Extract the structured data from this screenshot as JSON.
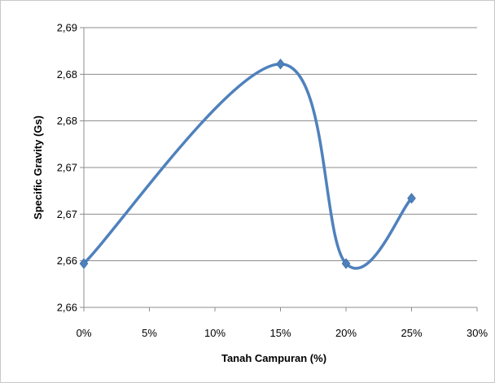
{
  "chart_data": {
    "type": "line",
    "smooth": true,
    "xlabel": "Tanah Campuran (%)",
    "ylabel": "Specific Gravity (Gs)",
    "x_ticks": [
      0,
      5,
      10,
      15,
      20,
      25,
      30
    ],
    "x_tick_labels": [
      "0%",
      "5%",
      "10%",
      "15%",
      "20%",
      "25%",
      "30%"
    ],
    "y_ticks": [
      2.655,
      2.66,
      2.665,
      2.67,
      2.675,
      2.68,
      2.685
    ],
    "y_tick_labels": [
      "2,66",
      "2,66",
      "2,67",
      "2,67",
      "2,68",
      "2,68",
      "2,69"
    ],
    "xlim": [
      0,
      30
    ],
    "ylim": [
      2.655,
      2.685
    ],
    "grid": "horizontal",
    "legend": "none",
    "series": [
      {
        "x": [
          0,
          15,
          20,
          25
        ],
        "y": [
          2.6597,
          2.6811,
          2.6597,
          2.6667
        ],
        "color": "#4F81BD",
        "marker": "diamond"
      }
    ]
  }
}
